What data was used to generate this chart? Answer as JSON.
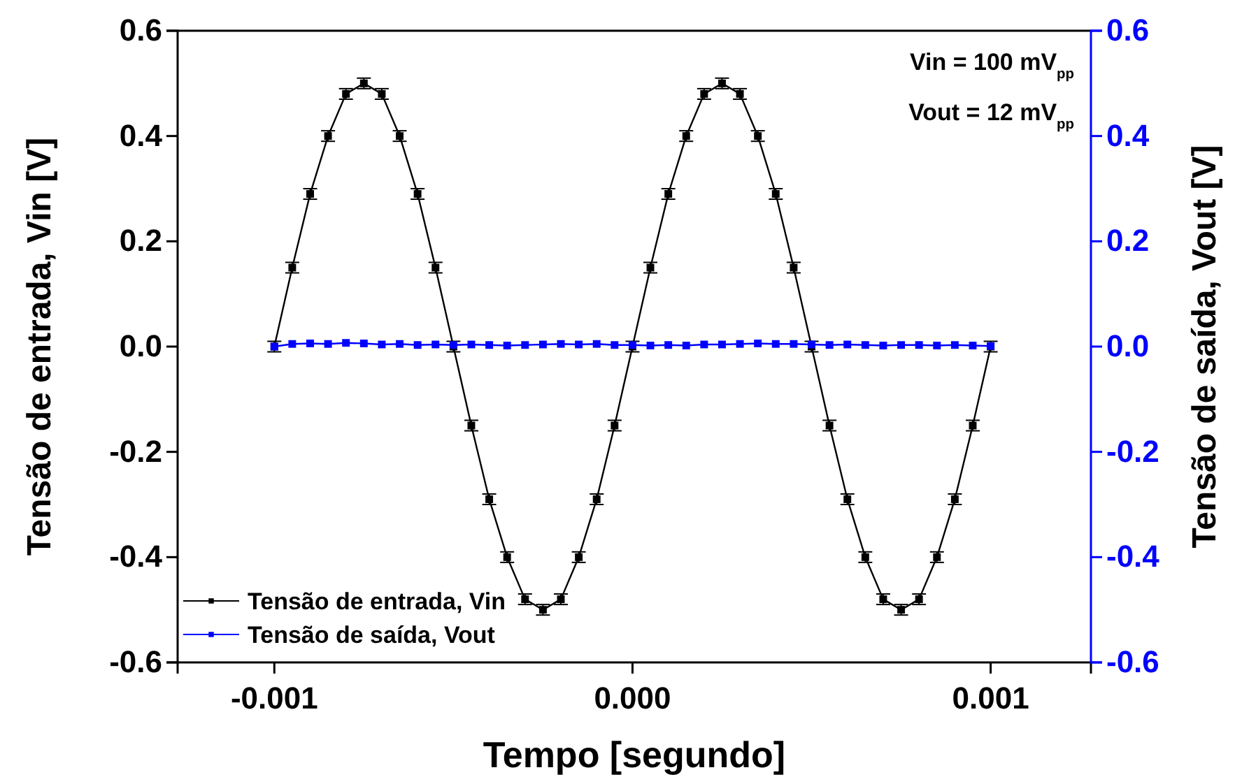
{
  "chart_data": {
    "type": "line",
    "xlabel": "Tempo [segundo]",
    "ylabel": "Tensão de entrada, Vin [V]",
    "y2label": "Tensão de saída, Vout [V]",
    "x": [
      -0.001,
      -0.00095,
      -0.0009,
      -0.00085,
      -0.0008,
      -0.00075,
      -0.0007,
      -0.00065,
      -0.0006,
      -0.00055,
      -0.0005,
      -0.00045,
      -0.0004,
      -0.00035,
      -0.0003,
      -0.00025,
      -0.0002,
      -0.00015,
      -0.0001,
      -5e-05,
      0,
      5e-05,
      0.0001,
      0.00015,
      0.0002,
      0.00025,
      0.0003,
      0.00035,
      0.0004,
      0.00045,
      0.0005,
      0.00055,
      0.0006,
      0.00065,
      0.0007,
      0.00075,
      0.0008,
      0.00085,
      0.0009,
      0.00095,
      0.001
    ],
    "series": [
      {
        "name": "Tensão de entrada, Vin",
        "color": "#000000",
        "values": [
          0,
          0.15,
          0.29,
          0.4,
          0.48,
          0.5,
          0.48,
          0.4,
          0.29,
          0.15,
          0,
          -0.15,
          -0.29,
          -0.4,
          -0.48,
          -0.5,
          -0.48,
          -0.4,
          -0.29,
          -0.15,
          0,
          0.15,
          0.29,
          0.4,
          0.48,
          0.5,
          0.48,
          0.4,
          0.29,
          0.15,
          0,
          -0.15,
          -0.29,
          -0.4,
          -0.48,
          -0.5,
          -0.48,
          -0.4,
          -0.29,
          -0.15,
          0
        ],
        "errors": [
          0.01,
          0.01,
          0.01,
          0.01,
          0.01,
          0.01,
          0.01,
          0.01,
          0.01,
          0.01,
          0.01,
          0.01,
          0.01,
          0.01,
          0.01,
          0.01,
          0.01,
          0.01,
          0.01,
          0.01,
          0.01,
          0.01,
          0.01,
          0.01,
          0.01,
          0.01,
          0.01,
          0.01,
          0.01,
          0.01,
          0.01,
          0.01,
          0.01,
          0.01,
          0.01,
          0.01,
          0.01,
          0.01,
          0.01,
          0.01,
          0.01
        ]
      },
      {
        "name": "Tensão de saída, Vout",
        "color": "#0000ff",
        "axis": "y2",
        "values": [
          0,
          0.005,
          0.006,
          0.005,
          0.007,
          0.006,
          0.004,
          0.005,
          0.003,
          0.004,
          0.003,
          0.004,
          0.003,
          0.002,
          0.003,
          0.004,
          0.005,
          0.004,
          0.005,
          0.003,
          0.003,
          0.002,
          0.003,
          0.002,
          0.004,
          0.004,
          0.005,
          0.006,
          0.005,
          0.005,
          0.004,
          0.003,
          0.004,
          0.003,
          0.002,
          0.003,
          0.003,
          0.002,
          0.003,
          0.002,
          0.001
        ]
      }
    ],
    "xlim": [
      -0.00127,
      0.00128
    ],
    "xticks": [
      -0.001,
      {
        "value": 0,
        "label": "0.000"
      },
      0.001
    ],
    "ylim": [
      -0.6,
      0.6
    ],
    "yticks": [
      -0.6,
      -0.4,
      -0.2,
      {
        "value": 0,
        "label": "0.0"
      },
      0.2,
      0.4,
      0.6
    ],
    "y2lim": [
      -0.6,
      0.6
    ],
    "y2ticks": [
      -0.6,
      -0.4,
      -0.2,
      {
        "value": 0,
        "label": "0.0"
      },
      0.2,
      0.4,
      0.6
    ],
    "annotations": [
      "Vin = 100 mV$_{pp}$",
      "Vout = 12 mV$_{pp}$"
    ],
    "legend": "bottom left",
    "marker": "square",
    "grid": false
  }
}
